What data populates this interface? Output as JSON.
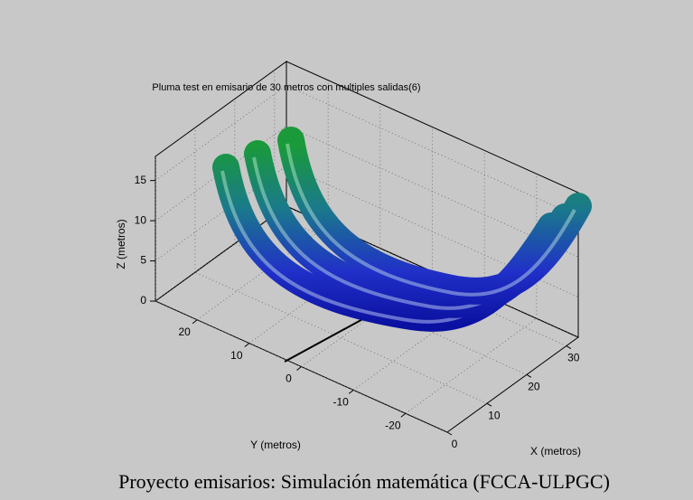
{
  "chart_data": {
    "type": "surface3d",
    "title": "Pluma test en emisario de 30 metros con multiples salidas(6)",
    "xlabel": "X (metros)",
    "ylabel": "Y (metros)",
    "zlabel": "Z (metros)",
    "xlim": [
      0,
      33
    ],
    "ylim": [
      -28,
      28
    ],
    "zlim": [
      0,
      18
    ],
    "xticks": [
      0,
      10,
      20,
      30
    ],
    "yticks": [
      -20,
      -10,
      0,
      10,
      20
    ],
    "zticks": [
      0,
      5,
      10,
      15
    ],
    "grid": true
  },
  "caption": "Proyecto emisarios: Simulación matemática (FCCA-ULPGC)"
}
